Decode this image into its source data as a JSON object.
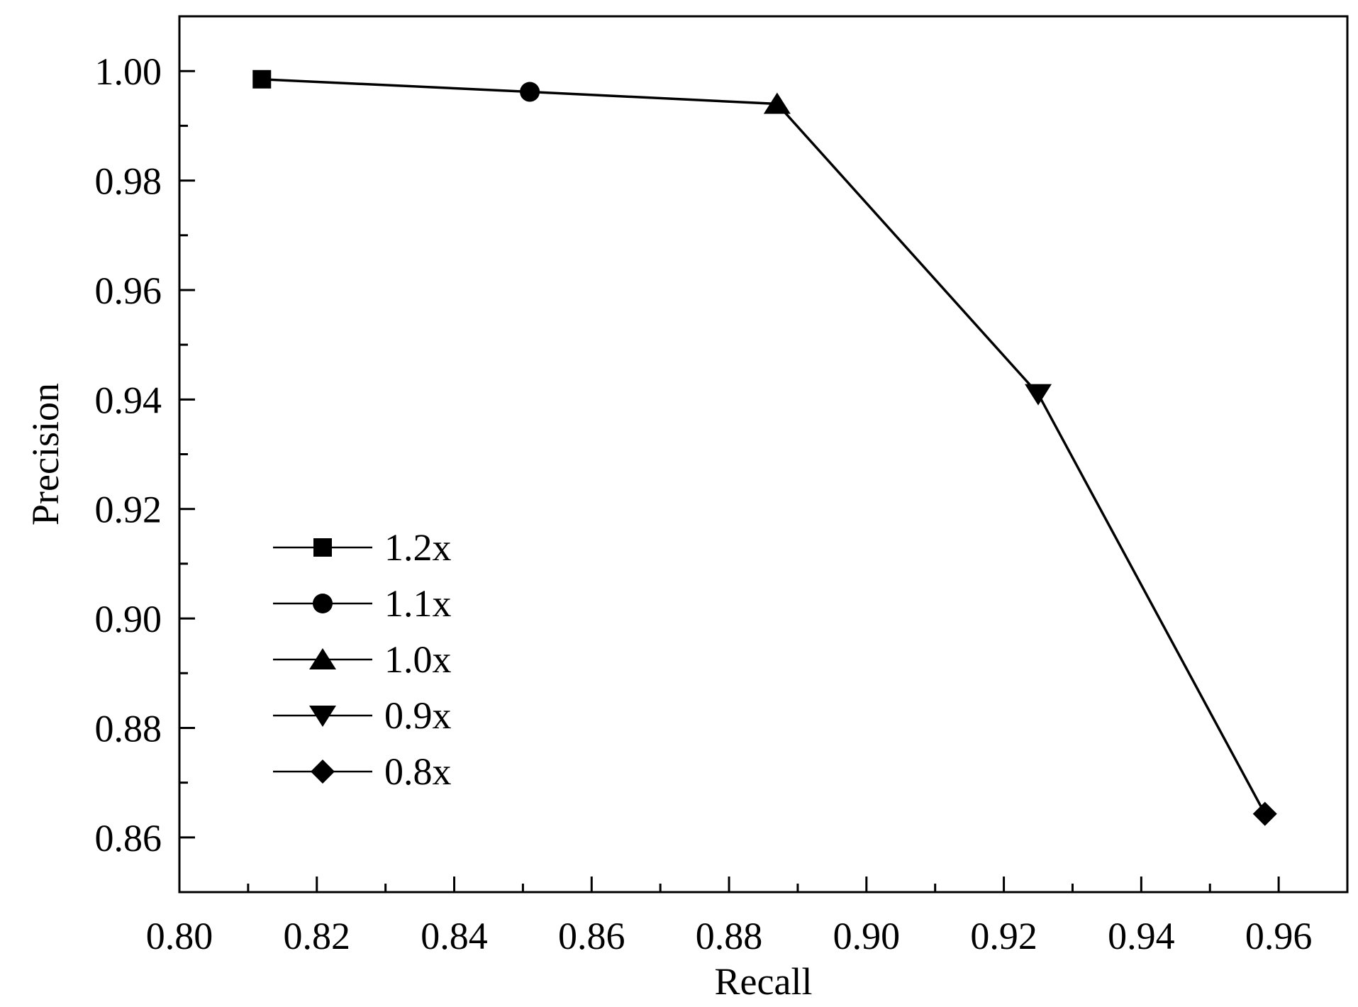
{
  "chart_data": {
    "type": "line",
    "title": "",
    "xlabel": "Recall",
    "ylabel": "Precision",
    "xlim": [
      0.8,
      0.97
    ],
    "ylim": [
      0.85,
      1.01
    ],
    "xticks": [
      0.8,
      0.82,
      0.84,
      0.86,
      0.88,
      0.9,
      0.92,
      0.94,
      0.96
    ],
    "xtick_labels": [
      "0.80",
      "0.82",
      "0.84",
      "0.86",
      "0.88",
      "0.90",
      "0.92",
      "0.94",
      "0.96"
    ],
    "yticks": [
      0.86,
      0.88,
      0.9,
      0.92,
      0.94,
      0.96,
      0.98,
      1.0
    ],
    "ytick_labels": [
      "0.86",
      "0.88",
      "0.90",
      "0.92",
      "0.94",
      "0.96",
      "0.98",
      "1.00"
    ],
    "grid": false,
    "legend_position": "left",
    "line_color": "#000000",
    "points": [
      {
        "label": "1.2x",
        "marker": "square",
        "x": 0.812,
        "y": 0.9985
      },
      {
        "label": "1.1x",
        "marker": "circle",
        "x": 0.851,
        "y": 0.9962
      },
      {
        "label": "1.0x",
        "marker": "triangle-up",
        "x": 0.887,
        "y": 0.994
      },
      {
        "label": "0.9x",
        "marker": "triangle-down",
        "x": 0.925,
        "y": 0.941
      },
      {
        "label": "0.8x",
        "marker": "diamond",
        "x": 0.958,
        "y": 0.8643
      }
    ]
  }
}
